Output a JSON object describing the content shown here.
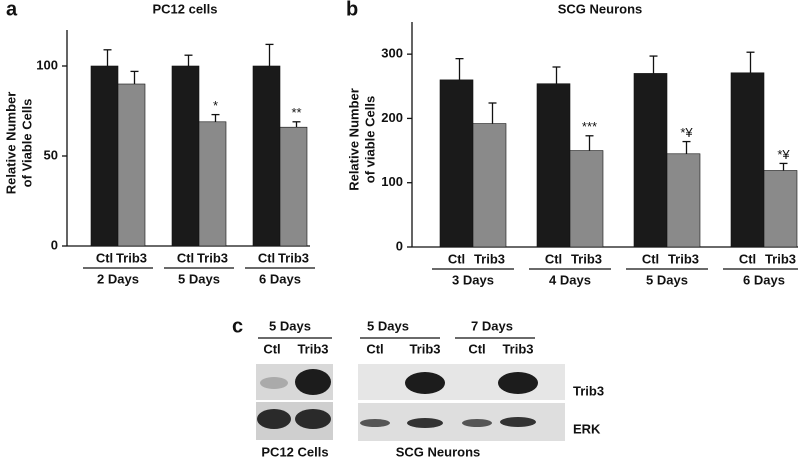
{
  "chart_data": [
    {
      "type": "bar",
      "panel": "a",
      "title": "PC12 cells",
      "y_label": [
        "Relative Number",
        "of Viable Cells"
      ],
      "categories": [
        "2 Days",
        "5 Days",
        "6 Days"
      ],
      "series": [
        {
          "name": "Ctl",
          "color": "#1a1a1a",
          "values": [
            100,
            100,
            100
          ],
          "errors": [
            9,
            6,
            12
          ]
        },
        {
          "name": "Trib3",
          "color": "#8a8a8a",
          "values": [
            90,
            69,
            66
          ],
          "errors": [
            7,
            4,
            3
          ],
          "labels": [
            null,
            "*",
            "**"
          ]
        }
      ],
      "ylim": [
        0,
        120
      ],
      "yticks": [
        0,
        50,
        100
      ]
    },
    {
      "type": "bar",
      "panel": "b",
      "title": "SCG Neurons",
      "y_label": [
        "Relative Number",
        "of viable Cells"
      ],
      "categories": [
        "3 Days",
        "4 Days",
        "5 Days",
        "6 Days"
      ],
      "series": [
        {
          "name": "Ctl",
          "color": "#1a1a1a",
          "values": [
            260,
            254,
            270,
            271
          ],
          "errors": [
            33,
            26,
            27,
            32
          ]
        },
        {
          "name": "Trib3",
          "color": "#8a8a8a",
          "values": [
            192,
            150,
            145,
            119
          ],
          "errors": [
            32,
            23,
            19,
            11
          ],
          "labels": [
            null,
            "***",
            "*¥",
            "*¥"
          ]
        }
      ],
      "ylim": [
        0,
        350
      ],
      "yticks": [
        0,
        100,
        200,
        300
      ]
    }
  ],
  "blot": {
    "panel": "c",
    "pc12": {
      "time": "5 Days",
      "lanes": [
        "Ctl",
        "Trib3"
      ],
      "caption": "PC12 Cells"
    },
    "scg": {
      "times": [
        "5 Days",
        "7 Days"
      ],
      "lanes": [
        "Ctl",
        "Trib3",
        "Ctl",
        "Trib3"
      ],
      "caption": "SCG Neurons"
    },
    "rows": [
      "Trib3",
      "ERK"
    ]
  }
}
